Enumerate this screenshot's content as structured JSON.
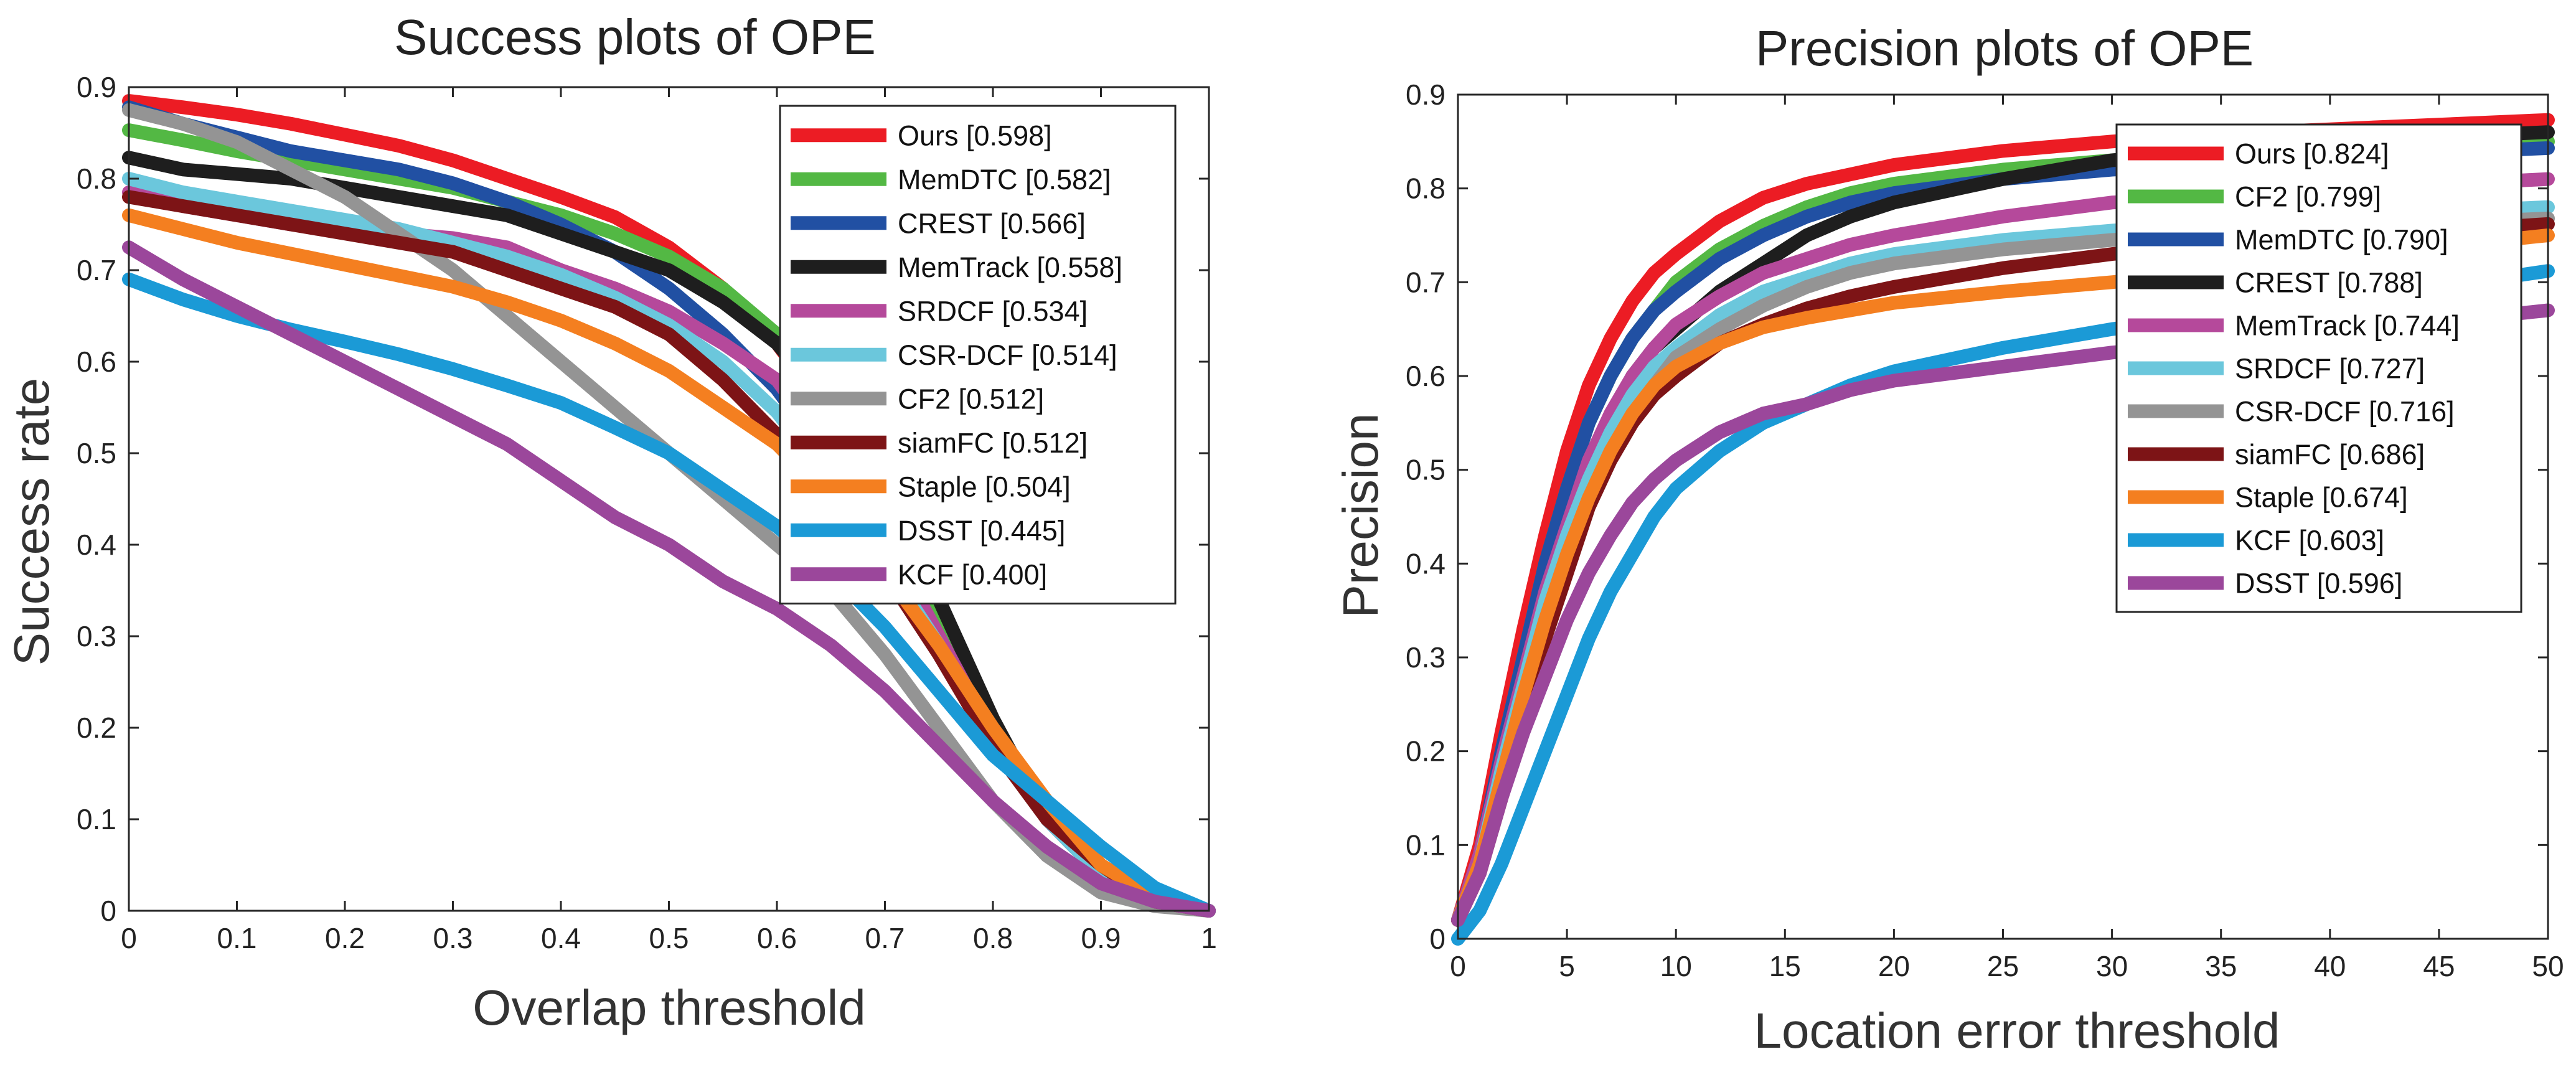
{
  "chart_data": [
    {
      "type": "line",
      "title": "Success plots of OPE",
      "xlabel": "Overlap threshold",
      "ylabel": "Success rate",
      "xlim": [
        0,
        1
      ],
      "ylim": [
        0,
        0.9
      ],
      "xticks": [
        0,
        0.1,
        0.2,
        0.3,
        0.4,
        0.5,
        0.6,
        0.7,
        0.8,
        0.9,
        1
      ],
      "xtick_labels": [
        "0",
        "0.1",
        "0.2",
        "0.3",
        "0.4",
        "0.5",
        "0.6",
        "0.7",
        "0.8",
        "0.9",
        "1"
      ],
      "yticks": [
        0,
        0.1,
        0.2,
        0.3,
        0.4,
        0.5,
        0.6,
        0.7,
        0.8,
        0.9
      ],
      "ytick_labels": [
        "0",
        "0.1",
        "0.2",
        "0.3",
        "0.4",
        "0.5",
        "0.6",
        "0.7",
        "0.8",
        "0.9"
      ],
      "grid": false,
      "legend_position": "top-right",
      "x": [
        0,
        0.05,
        0.1,
        0.15,
        0.2,
        0.25,
        0.3,
        0.35,
        0.4,
        0.45,
        0.5,
        0.55,
        0.6,
        0.65,
        0.7,
        0.75,
        0.8,
        0.85,
        0.9,
        0.95,
        1
      ],
      "series": [
        {
          "name": "Ours",
          "legend": "Ours [0.598]",
          "color": "#ec1c24",
          "values": [
            0.885,
            0.878,
            0.87,
            0.86,
            0.848,
            0.836,
            0.82,
            0.8,
            0.78,
            0.758,
            0.725,
            0.68,
            0.62,
            0.54,
            0.43,
            0.32,
            0.2,
            0.11,
            0.04,
            0.01,
            0.0
          ]
        },
        {
          "name": "MemDTC",
          "legend": "MemDTC [0.582]",
          "color": "#53b844",
          "values": [
            0.853,
            0.842,
            0.83,
            0.82,
            0.81,
            0.8,
            0.79,
            0.775,
            0.76,
            0.74,
            0.715,
            0.68,
            0.63,
            0.56,
            0.45,
            0.33,
            0.2,
            0.1,
            0.04,
            0.01,
            0.0
          ]
        },
        {
          "name": "CREST",
          "legend": "CREST [0.566]",
          "color": "#2150a3",
          "values": [
            0.878,
            0.86,
            0.845,
            0.83,
            0.82,
            0.81,
            0.795,
            0.775,
            0.75,
            0.72,
            0.68,
            0.63,
            0.57,
            0.49,
            0.4,
            0.3,
            0.19,
            0.1,
            0.04,
            0.01,
            0.0
          ]
        },
        {
          "name": "MemTrack",
          "legend": "MemTrack [0.558]",
          "color": "#1e1e1e",
          "values": [
            0.823,
            0.81,
            0.805,
            0.8,
            0.79,
            0.78,
            0.77,
            0.76,
            0.74,
            0.72,
            0.7,
            0.665,
            0.62,
            0.55,
            0.45,
            0.34,
            0.21,
            0.1,
            0.04,
            0.01,
            0.0
          ]
        },
        {
          "name": "SRDCF",
          "legend": "SRDCF [0.534]",
          "color": "#b5499b",
          "values": [
            0.785,
            0.77,
            0.76,
            0.75,
            0.745,
            0.74,
            0.735,
            0.725,
            0.7,
            0.68,
            0.655,
            0.62,
            0.58,
            0.5,
            0.41,
            0.3,
            0.19,
            0.1,
            0.04,
            0.01,
            0.0
          ]
        },
        {
          "name": "CSR-DCF",
          "legend": "CSR-DCF [0.514]",
          "color": "#6bc7dc",
          "values": [
            0.8,
            0.785,
            0.775,
            0.765,
            0.755,
            0.745,
            0.73,
            0.715,
            0.695,
            0.67,
            0.64,
            0.6,
            0.545,
            0.47,
            0.38,
            0.29,
            0.19,
            0.1,
            0.04,
            0.01,
            0.0
          ]
        },
        {
          "name": "CF2",
          "legend": "CF2 [0.512]",
          "color": "#949494",
          "values": [
            0.875,
            0.86,
            0.84,
            0.81,
            0.78,
            0.74,
            0.7,
            0.65,
            0.6,
            0.55,
            0.5,
            0.45,
            0.4,
            0.35,
            0.28,
            0.2,
            0.12,
            0.06,
            0.02,
            0.005,
            0.0
          ]
        },
        {
          "name": "siamFC",
          "legend": "siamFC [0.512]",
          "color": "#7d1416",
          "values": [
            0.78,
            0.77,
            0.76,
            0.75,
            0.74,
            0.73,
            0.72,
            0.7,
            0.68,
            0.66,
            0.63,
            0.58,
            0.52,
            0.45,
            0.37,
            0.28,
            0.18,
            0.1,
            0.05,
            0.01,
            0.0
          ]
        },
        {
          "name": "Staple",
          "legend": "Staple [0.504]",
          "color": "#f47f20",
          "values": [
            0.76,
            0.745,
            0.73,
            0.718,
            0.706,
            0.694,
            0.682,
            0.665,
            0.645,
            0.62,
            0.59,
            0.55,
            0.51,
            0.45,
            0.37,
            0.29,
            0.2,
            0.12,
            0.05,
            0.015,
            0.0
          ]
        },
        {
          "name": "DSST",
          "legend": "DSST [0.445]",
          "color": "#1b9ad6",
          "values": [
            0.69,
            0.668,
            0.65,
            0.635,
            0.622,
            0.608,
            0.592,
            0.574,
            0.555,
            0.528,
            0.5,
            0.46,
            0.42,
            0.37,
            0.31,
            0.24,
            0.17,
            0.12,
            0.07,
            0.025,
            0.0
          ]
        },
        {
          "name": "KCF",
          "legend": "KCF [0.400]",
          "color": "#9b479b",
          "values": [
            0.725,
            0.69,
            0.66,
            0.63,
            0.6,
            0.57,
            0.54,
            0.51,
            0.47,
            0.43,
            0.4,
            0.36,
            0.33,
            0.29,
            0.24,
            0.18,
            0.12,
            0.07,
            0.03,
            0.01,
            0.0
          ]
        }
      ]
    },
    {
      "type": "line",
      "title": "Precision plots of OPE",
      "xlabel": "Location error threshold",
      "ylabel": "Precision",
      "xlim": [
        0,
        50
      ],
      "ylim": [
        0,
        0.9
      ],
      "xticks": [
        0,
        5,
        10,
        15,
        20,
        25,
        30,
        35,
        40,
        45,
        50
      ],
      "xtick_labels": [
        "0",
        "5",
        "10",
        "15",
        "20",
        "25",
        "30",
        "35",
        "40",
        "45",
        "50"
      ],
      "yticks": [
        0,
        0.1,
        0.2,
        0.3,
        0.4,
        0.5,
        0.6,
        0.7,
        0.8,
        0.9
      ],
      "ytick_labels": [
        "0",
        "0.1",
        "0.2",
        "0.3",
        "0.4",
        "0.5",
        "0.6",
        "0.7",
        "0.8",
        "0.9"
      ],
      "grid": false,
      "legend_position": "top-right",
      "x": [
        0,
        1,
        2,
        3,
        4,
        5,
        6,
        7,
        8,
        9,
        10,
        12,
        14,
        16,
        18,
        20,
        25,
        30,
        35,
        40,
        45,
        50
      ],
      "series": [
        {
          "name": "Ours",
          "legend": "Ours [0.824]",
          "color": "#ec1c24",
          "values": [
            0.02,
            0.1,
            0.22,
            0.33,
            0.43,
            0.52,
            0.59,
            0.64,
            0.68,
            0.71,
            0.73,
            0.765,
            0.79,
            0.805,
            0.815,
            0.825,
            0.84,
            0.85,
            0.858,
            0.863,
            0.868,
            0.873
          ]
        },
        {
          "name": "CF2",
          "legend": "CF2 [0.799]",
          "color": "#53b844",
          "values": [
            0.02,
            0.09,
            0.2,
            0.3,
            0.4,
            0.48,
            0.55,
            0.6,
            0.64,
            0.67,
            0.7,
            0.735,
            0.76,
            0.78,
            0.795,
            0.805,
            0.82,
            0.83,
            0.835,
            0.84,
            0.845,
            0.85
          ]
        },
        {
          "name": "MemDTC",
          "legend": "MemDTC [0.790]",
          "color": "#2150a3",
          "values": [
            0.02,
            0.09,
            0.2,
            0.3,
            0.4,
            0.48,
            0.55,
            0.6,
            0.64,
            0.67,
            0.69,
            0.725,
            0.75,
            0.77,
            0.785,
            0.795,
            0.81,
            0.82,
            0.826,
            0.832,
            0.838,
            0.843
          ]
        },
        {
          "name": "CREST",
          "legend": "CREST [0.788]",
          "color": "#1e1e1e",
          "values": [
            0.02,
            0.08,
            0.17,
            0.26,
            0.35,
            0.43,
            0.5,
            0.55,
            0.6,
            0.63,
            0.65,
            0.69,
            0.72,
            0.75,
            0.77,
            0.785,
            0.81,
            0.83,
            0.84,
            0.848,
            0.855,
            0.86
          ]
        },
        {
          "name": "MemTrack",
          "legend": "MemTrack [0.744]",
          "color": "#b5499b",
          "values": [
            0.02,
            0.09,
            0.19,
            0.28,
            0.37,
            0.44,
            0.51,
            0.56,
            0.6,
            0.63,
            0.655,
            0.685,
            0.71,
            0.725,
            0.74,
            0.75,
            0.77,
            0.785,
            0.79,
            0.797,
            0.804,
            0.81
          ]
        },
        {
          "name": "SRDCF",
          "legend": "SRDCF [0.727]",
          "color": "#6bc7dc",
          "values": [
            0.02,
            0.08,
            0.18,
            0.27,
            0.36,
            0.43,
            0.49,
            0.54,
            0.58,
            0.61,
            0.63,
            0.665,
            0.69,
            0.705,
            0.72,
            0.73,
            0.745,
            0.755,
            0.763,
            0.77,
            0.775,
            0.78
          ]
        },
        {
          "name": "CSR-DCF",
          "legend": "CSR-DCF [0.716]",
          "color": "#949494",
          "values": [
            0.02,
            0.08,
            0.17,
            0.26,
            0.34,
            0.41,
            0.47,
            0.52,
            0.56,
            0.59,
            0.62,
            0.65,
            0.675,
            0.695,
            0.71,
            0.72,
            0.735,
            0.745,
            0.752,
            0.758,
            0.763,
            0.768
          ]
        },
        {
          "name": "siamFC",
          "legend": "siamFC [0.686]",
          "color": "#7d1416",
          "values": [
            0.02,
            0.07,
            0.15,
            0.24,
            0.32,
            0.39,
            0.46,
            0.51,
            0.55,
            0.58,
            0.6,
            0.635,
            0.655,
            0.672,
            0.685,
            0.695,
            0.715,
            0.73,
            0.74,
            0.748,
            0.755,
            0.762
          ]
        },
        {
          "name": "Staple",
          "legend": "Staple [0.674]",
          "color": "#f47f20",
          "values": [
            0.02,
            0.08,
            0.17,
            0.26,
            0.34,
            0.41,
            0.47,
            0.52,
            0.56,
            0.59,
            0.61,
            0.635,
            0.652,
            0.662,
            0.67,
            0.678,
            0.69,
            0.7,
            0.712,
            0.725,
            0.738,
            0.75
          ]
        },
        {
          "name": "KCF",
          "legend": "KCF [0.603]",
          "color": "#1b9ad6",
          "values": [
            0.0,
            0.03,
            0.08,
            0.14,
            0.2,
            0.26,
            0.32,
            0.37,
            0.41,
            0.45,
            0.48,
            0.52,
            0.55,
            0.57,
            0.59,
            0.605,
            0.63,
            0.65,
            0.665,
            0.68,
            0.695,
            0.712
          ]
        },
        {
          "name": "DSST",
          "legend": "DSST [0.596]",
          "color": "#9b479b",
          "values": [
            0.02,
            0.07,
            0.15,
            0.22,
            0.28,
            0.34,
            0.39,
            0.43,
            0.465,
            0.49,
            0.51,
            0.54,
            0.56,
            0.57,
            0.585,
            0.595,
            0.61,
            0.625,
            0.635,
            0.645,
            0.658,
            0.67
          ]
        }
      ]
    }
  ]
}
